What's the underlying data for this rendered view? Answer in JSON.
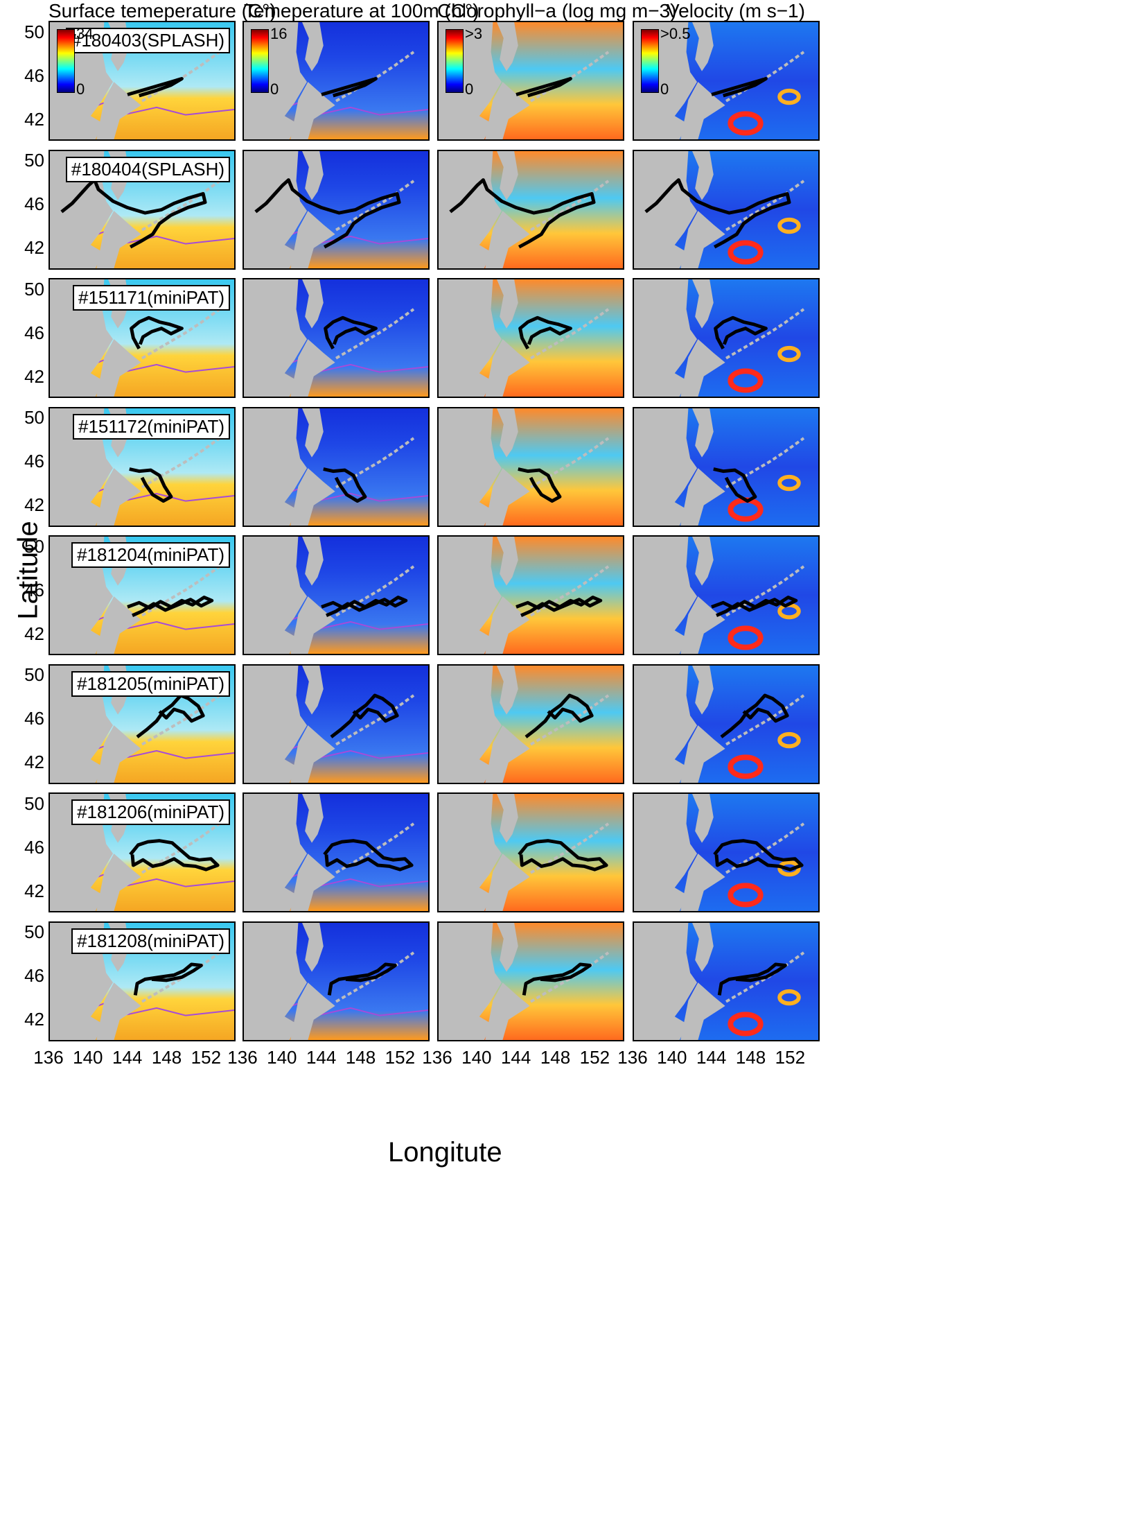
{
  "figure": {
    "ylabel": "Latitude",
    "xlabel": "Longitute"
  },
  "columns": [
    {
      "title": "Surface temeperature (C°)",
      "cbar_max": "34",
      "cbar_min": "0",
      "variable": "sst"
    },
    {
      "title": "Temeperature at 100m (C°)",
      "cbar_max": "16",
      "cbar_min": "0",
      "variable": "t100"
    },
    {
      "title": "Chlorophyll−a (log mg m−3)",
      "cbar_max": ">3",
      "cbar_min": "0",
      "variable": "chl"
    },
    {
      "title": "Velocity (m s−1)",
      "cbar_max": ">0.5",
      "cbar_min": "0",
      "variable": "vel"
    }
  ],
  "colors": {
    "land": "#bdbdbd",
    "track": "#000000",
    "front": "#a64bd8",
    "jet": [
      "#00007f",
      "#0000ff",
      "#007fff",
      "#00ffff",
      "#7fff7f",
      "#ffff00",
      "#ff7f00",
      "#ff0000",
      "#7f0000"
    ]
  },
  "chart_data": {
    "type": "map-grid",
    "xlabel": "Longitute",
    "ylabel": "Latitude",
    "xlim": [
      136,
      155
    ],
    "ylim": [
      40,
      51
    ],
    "xticks": [
      136,
      140,
      144,
      148,
      152
    ],
    "yticks": [
      42,
      46,
      50
    ],
    "panel_titles": [
      "Surface temeperature (C°)",
      "Temeperature at 100m (C°)",
      "Chlorophyll−a (log mg m−3)",
      "Velocity (m s−1)"
    ],
    "colorbars": [
      {
        "variable": "Surface temeperature",
        "min": 0,
        "max": 34,
        "unit": "C°"
      },
      {
        "variable": "Temeperature at 100m",
        "min": 0,
        "max": 16,
        "unit": "C°"
      },
      {
        "variable": "Chlorophyll−a",
        "min": 0,
        "max": ">3",
        "unit": "log mg m−3"
      },
      {
        "variable": "Velocity",
        "min": 0,
        "max": ">0.5",
        "unit": "m s−1"
      }
    ],
    "tracks": [
      {
        "tag": "#180403(SPLASH)",
        "lonlat": [
          [
            144.0,
            44.2
          ],
          [
            145.5,
            44.6
          ],
          [
            147.0,
            45.0
          ],
          [
            148.5,
            45.4
          ],
          [
            149.6,
            45.7
          ],
          [
            148.5,
            45.1
          ],
          [
            147.0,
            44.6
          ],
          [
            145.2,
            44.1
          ]
        ]
      },
      {
        "tag": "#180404(SPLASH)",
        "lonlat": [
          [
            137.2,
            45.3
          ],
          [
            138.3,
            46.1
          ],
          [
            139.2,
            47.0
          ],
          [
            140.0,
            47.8
          ],
          [
            140.6,
            48.3
          ],
          [
            141.0,
            47.4
          ],
          [
            142.5,
            46.3
          ],
          [
            144.0,
            45.7
          ],
          [
            145.8,
            45.2
          ],
          [
            147.5,
            45.5
          ],
          [
            148.8,
            46.1
          ],
          [
            150.3,
            46.6
          ],
          [
            151.8,
            47.0
          ],
          [
            152.0,
            46.2
          ],
          [
            150.2,
            45.7
          ],
          [
            148.5,
            45.0
          ],
          [
            147.3,
            44.2
          ],
          [
            146.6,
            43.2
          ],
          [
            145.3,
            42.5
          ],
          [
            144.3,
            42.0
          ]
        ]
      },
      {
        "tag": "#151171(miniPAT)",
        "lonlat": [
          [
            145.2,
            44.5
          ],
          [
            144.6,
            45.5
          ],
          [
            144.4,
            46.4
          ],
          [
            145.2,
            47.0
          ],
          [
            146.2,
            47.4
          ],
          [
            147.3,
            47.0
          ],
          [
            148.3,
            46.8
          ],
          [
            149.6,
            46.4
          ],
          [
            148.5,
            45.9
          ],
          [
            147.5,
            46.4
          ],
          [
            146.5,
            46.1
          ],
          [
            145.6,
            45.6
          ],
          [
            145.3,
            44.9
          ]
        ]
      },
      {
        "tag": "#151172(miniPAT)",
        "lonlat": [
          [
            144.2,
            45.3
          ],
          [
            145.2,
            45.1
          ],
          [
            146.4,
            45.2
          ],
          [
            147.3,
            44.7
          ],
          [
            147.8,
            43.7
          ],
          [
            148.5,
            42.7
          ],
          [
            147.7,
            42.3
          ],
          [
            146.6,
            42.9
          ],
          [
            145.9,
            43.8
          ],
          [
            145.5,
            44.5
          ]
        ]
      },
      {
        "tag": "#181204(miniPAT)",
        "lonlat": [
          [
            144.0,
            44.4
          ],
          [
            145.2,
            44.8
          ],
          [
            146.3,
            44.3
          ],
          [
            147.4,
            44.9
          ],
          [
            148.5,
            44.4
          ],
          [
            149.6,
            45.0
          ],
          [
            150.7,
            44.6
          ],
          [
            151.9,
            45.3
          ],
          [
            152.7,
            45.0
          ],
          [
            151.6,
            44.5
          ],
          [
            150.5,
            45.1
          ],
          [
            149.2,
            44.6
          ],
          [
            147.9,
            44.1
          ],
          [
            146.7,
            44.7
          ],
          [
            145.5,
            44.0
          ],
          [
            144.5,
            43.6
          ]
        ]
      },
      {
        "tag": "#181205(miniPAT)",
        "lonlat": [
          [
            145.0,
            44.3
          ],
          [
            146.0,
            45.0
          ],
          [
            147.0,
            45.8
          ],
          [
            147.7,
            46.7
          ],
          [
            148.6,
            47.3
          ],
          [
            149.5,
            48.2
          ],
          [
            150.3,
            47.9
          ],
          [
            151.3,
            47.2
          ],
          [
            151.8,
            46.3
          ],
          [
            150.6,
            45.8
          ],
          [
            149.8,
            46.6
          ],
          [
            148.8,
            46.9
          ],
          [
            148.0,
            46.1
          ],
          [
            147.3,
            46.7
          ]
        ]
      },
      {
        "tag": "#181206(miniPAT)",
        "lonlat": [
          [
            144.3,
            45.3
          ],
          [
            145.1,
            46.2
          ],
          [
            146.1,
            46.5
          ],
          [
            147.3,
            46.6
          ],
          [
            148.6,
            46.4
          ],
          [
            149.5,
            45.7
          ],
          [
            150.4,
            45.0
          ],
          [
            151.4,
            44.8
          ],
          [
            152.6,
            44.9
          ],
          [
            153.3,
            44.3
          ],
          [
            152.1,
            43.9
          ],
          [
            151.0,
            44.2
          ],
          [
            149.8,
            44.3
          ],
          [
            148.8,
            44.9
          ],
          [
            147.6,
            44.4
          ],
          [
            146.6,
            44.2
          ],
          [
            145.6,
            44.8
          ],
          [
            144.6,
            44.3
          ],
          [
            144.5,
            45.3
          ]
        ]
      },
      {
        "tag": "#181208(miniPAT)",
        "lonlat": [
          [
            144.8,
            44.2
          ],
          [
            145.0,
            45.3
          ],
          [
            145.8,
            45.7
          ],
          [
            147.3,
            45.9
          ],
          [
            148.8,
            46.1
          ],
          [
            149.8,
            46.5
          ],
          [
            150.6,
            47.1
          ],
          [
            151.6,
            47.0
          ],
          [
            150.8,
            46.5
          ],
          [
            149.6,
            45.9
          ],
          [
            148.0,
            45.6
          ],
          [
            146.5,
            45.7
          ]
        ]
      }
    ]
  }
}
